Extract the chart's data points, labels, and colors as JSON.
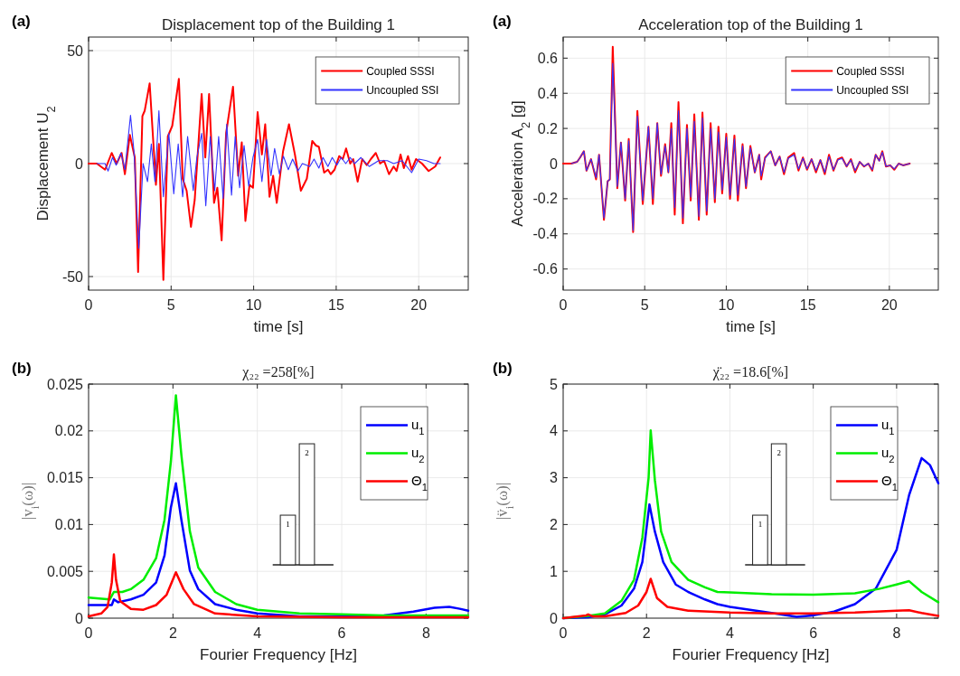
{
  "chart_data": [
    {
      "type": "line",
      "title": "Displacement top of the Building 1",
      "xlabel": "time [s]",
      "ylabel": "Displacement U$_{2}$",
      "annotations": [
        "(a)"
      ],
      "xlim": [
        0,
        23
      ],
      "xticks": [
        0,
        5,
        10,
        15,
        20
      ],
      "ylim": [
        -56,
        56
      ],
      "yticks": [
        -50,
        0,
        50
      ],
      "grid": true,
      "legend": "top right",
      "series": [
        {
          "name": "Coupled SSSI",
          "color": "#ff0000",
          "x": [
            0,
            0.5,
            1.0,
            1.4,
            1.7,
            2.0,
            2.2,
            2.5,
            2.8,
            3.0,
            3.26,
            3.4,
            3.7,
            4.08,
            4.26,
            4.53,
            4.8,
            5.07,
            5.47,
            5.7,
            5.94,
            6.2,
            6.43,
            6.85,
            7.07,
            7.3,
            7.6,
            7.8,
            8.06,
            8.33,
            8.75,
            9.06,
            9.28,
            9.5,
            9.75,
            9.96,
            10.24,
            10.5,
            10.7,
            10.96,
            11.18,
            11.4,
            11.78,
            12.14,
            12.5,
            12.86,
            13.22,
            13.55,
            13.77,
            13.95,
            14.27,
            14.5,
            14.67,
            14.9,
            15.18,
            15.4,
            15.6,
            15.85,
            16.03,
            16.3,
            16.58,
            16.85,
            17.1,
            17.4,
            17.66,
            17.9,
            18.2,
            18.48,
            18.66,
            18.9,
            19.1,
            19.35,
            19.57,
            19.84,
            20.2,
            20.6,
            21.0,
            21.3
          ],
          "values": [
            0,
            0,
            -2.7,
            4.7,
            0,
            4.7,
            -4.7,
            12.7,
            2.7,
            -48,
            21,
            23.4,
            35.5,
            -9.4,
            8.7,
            -51.5,
            12,
            16.7,
            37.5,
            -6.7,
            -12,
            -28,
            -16,
            30.8,
            2.7,
            30.8,
            -17.4,
            -10.7,
            -34,
            13.4,
            34,
            -5.4,
            9.4,
            -25.4,
            -9.4,
            -10.7,
            22.8,
            4,
            17.4,
            -14.7,
            -5.4,
            -17.4,
            5.4,
            17.4,
            4,
            -12,
            -6.7,
            10,
            8,
            7.4,
            -4,
            -2.7,
            -4.7,
            -2.7,
            3.3,
            2,
            6.7,
            0,
            2,
            -8,
            2,
            -0.7,
            2,
            4.7,
            0,
            1.3,
            -4.7,
            -1.3,
            -3.3,
            4,
            -2,
            3.3,
            -2.7,
            2,
            0,
            -3.3,
            -1.3,
            2.7
          ]
        },
        {
          "name": "Uncoupled SSI",
          "color": "#3333ff",
          "x": [
            0.5,
            1.0,
            1.18,
            1.45,
            1.67,
            1.96,
            2.2,
            2.54,
            2.75,
            3.04,
            3.3,
            3.57,
            3.8,
            4.02,
            4.26,
            4.53,
            4.86,
            5.16,
            5.43,
            5.7,
            6.0,
            6.34,
            6.56,
            6.85,
            7.1,
            7.37,
            7.64,
            7.88,
            8.15,
            8.37,
            8.66,
            8.88,
            9.15,
            9.42,
            9.7,
            9.96,
            10.24,
            10.5,
            10.78,
            11.05,
            11.27,
            11.56,
            11.8,
            12.1,
            12.36,
            12.68,
            12.95,
            13.4,
            13.66,
            13.95,
            14.2,
            14.5,
            14.76,
            15.04,
            15.3,
            15.58,
            15.85,
            16.12,
            16.5,
            17.0,
            17.57,
            18.1,
            18.48,
            19.0,
            19.57,
            20.0,
            20.47,
            20.92,
            21.3
          ],
          "values": [
            0,
            0,
            -3.3,
            2.7,
            -0.7,
            4.7,
            -2.7,
            21.4,
            5.4,
            -37.5,
            0,
            -8,
            8.7,
            -8,
            23.4,
            -14.7,
            13.4,
            -13.4,
            8.7,
            -14.7,
            12,
            -12,
            2.7,
            13.4,
            -18.7,
            12,
            -12,
            12,
            -15.4,
            17.4,
            -14,
            12,
            -10.7,
            8,
            -10,
            2.7,
            10.7,
            -8,
            10.7,
            -5.4,
            6.7,
            -4.7,
            3.3,
            -2.7,
            2,
            -3.3,
            0,
            -1.3,
            2,
            -2,
            2.7,
            -1.3,
            2.7,
            -0.7,
            2.7,
            0,
            2.7,
            0,
            2.7,
            -1.3,
            1.3,
            1.3,
            0,
            1.3,
            -4,
            2,
            1.3,
            0,
            0
          ]
        }
      ]
    },
    {
      "type": "line",
      "title": "Acceleration top of the Building 1",
      "xlabel": "time [s]",
      "ylabel": "Acceleration A$_{2}$ [g]",
      "annotations": [
        "(a)"
      ],
      "xlim": [
        0,
        23
      ],
      "xticks": [
        0,
        5,
        10,
        15,
        20
      ],
      "ylim": [
        -0.72,
        0.72
      ],
      "yticks": [
        -0.6,
        -0.4,
        -0.2,
        0,
        0.2,
        0.4,
        0.6
      ],
      "grid": true,
      "legend": "top right",
      "series": [
        {
          "name": "Coupled SSSI",
          "color": "#ff0000",
          "x": [
            0,
            0.5,
            0.86,
            1.04,
            1.27,
            1.43,
            1.71,
            2.02,
            2.2,
            2.5,
            2.73,
            2.86,
            3.04,
            3.32,
            3.54,
            3.8,
            4.02,
            4.29,
            4.55,
            4.88,
            5.23,
            5.5,
            5.77,
            6.0,
            6.25,
            6.45,
            6.63,
            6.84,
            7.07,
            7.34,
            7.59,
            7.82,
            8.04,
            8.32,
            8.54,
            8.8,
            9.04,
            9.3,
            9.52,
            9.75,
            10.0,
            10.23,
            10.5,
            10.71,
            11.0,
            11.21,
            11.48,
            11.75,
            12.02,
            12.14,
            12.38,
            12.73,
            13.0,
            13.27,
            13.54,
            13.8,
            14.16,
            14.43,
            14.7,
            14.95,
            15.23,
            15.5,
            15.77,
            16.04,
            16.3,
            16.57,
            16.84,
            17.1,
            17.38,
            17.64,
            17.9,
            18.18,
            18.45,
            18.71,
            18.95,
            19.16,
            19.38,
            19.57,
            19.79,
            20.05,
            20.3,
            20.57,
            20.84,
            21.25
          ],
          "values": [
            0,
            0,
            0.01,
            0.035,
            0.07,
            -0.04,
            0.025,
            -0.09,
            0.05,
            -0.32,
            -0.1,
            -0.09,
            0.665,
            -0.14,
            0.12,
            -0.21,
            0.14,
            -0.39,
            0.3,
            -0.23,
            0.21,
            -0.23,
            0.23,
            -0.07,
            0.11,
            -0.05,
            0.23,
            -0.29,
            0.35,
            -0.34,
            0.22,
            -0.21,
            0.28,
            -0.32,
            0.29,
            -0.29,
            0.23,
            -0.22,
            0.21,
            -0.17,
            0.17,
            -0.2,
            0.16,
            -0.21,
            0.11,
            -0.14,
            0.1,
            -0.05,
            0.05,
            -0.09,
            0.035,
            0.07,
            -0.01,
            0.04,
            -0.06,
            0.035,
            0.06,
            -0.04,
            0.035,
            -0.035,
            0.025,
            -0.05,
            0.02,
            -0.06,
            0.05,
            -0.04,
            0.025,
            0.035,
            -0.017,
            0.025,
            -0.05,
            0.01,
            -0.017,
            0,
            -0.04,
            0.05,
            0.017,
            0.07,
            -0.017,
            -0.01,
            -0.035,
            0,
            -0.01,
            0
          ]
        },
        {
          "name": "Uncoupled SSI",
          "color": "#3333ff",
          "x": [
            0.5,
            0.86,
            1.04,
            1.27,
            1.43,
            1.71,
            2.02,
            2.2,
            2.5,
            2.73,
            2.86,
            3.04,
            3.32,
            3.54,
            3.8,
            4.02,
            4.29,
            4.55,
            4.88,
            5.23,
            5.5,
            5.77,
            6.0,
            6.25,
            6.45,
            6.63,
            6.84,
            7.07,
            7.34,
            7.59,
            7.82,
            8.04,
            8.32,
            8.54,
            8.8,
            9.04,
            9.3,
            9.52,
            9.75,
            10.0,
            10.23,
            10.5,
            10.71,
            11.0,
            11.21,
            11.48,
            11.75,
            12.02,
            12.14,
            12.38,
            12.73,
            13.0,
            13.27,
            13.54,
            13.8,
            14.16,
            14.43,
            14.7,
            14.95,
            15.23,
            15.5,
            15.77,
            16.04,
            16.3,
            16.57,
            16.84,
            17.1,
            17.38,
            17.64,
            17.9,
            18.18,
            18.45,
            18.71,
            18.95,
            19.16,
            19.38,
            19.57,
            19.79,
            20.05,
            20.3,
            20.57,
            20.84,
            21.25
          ],
          "values": [
            0,
            0.01,
            0.035,
            0.07,
            -0.04,
            0.025,
            -0.08,
            0.05,
            -0.31,
            -0.1,
            -0.09,
            0.57,
            -0.13,
            0.12,
            -0.2,
            0.13,
            -0.38,
            0.27,
            -0.21,
            0.21,
            -0.2,
            0.23,
            -0.06,
            0.1,
            -0.05,
            0.2,
            -0.25,
            0.3,
            -0.31,
            0.2,
            -0.19,
            0.24,
            -0.3,
            0.26,
            -0.27,
            0.2,
            -0.2,
            0.18,
            -0.15,
            0.15,
            -0.18,
            0.14,
            -0.18,
            0.1,
            -0.13,
            0.09,
            -0.05,
            0.05,
            -0.07,
            0.03,
            0.07,
            -0.01,
            0.04,
            -0.05,
            0.03,
            0.05,
            -0.03,
            0.03,
            -0.03,
            0.025,
            -0.04,
            0.02,
            -0.05,
            0.04,
            -0.035,
            0.02,
            0.03,
            -0.015,
            0.02,
            -0.04,
            0.01,
            -0.015,
            0,
            -0.035,
            0.05,
            0.015,
            0.065,
            -0.015,
            -0.01,
            -0.03,
            0,
            -0.01,
            0
          ]
        }
      ]
    },
    {
      "type": "line",
      "title": "χ₂₂ =258[%]",
      "xlabel": "Fourier Frequency [Hz]",
      "ylabel": "|v$_{i}$(ω)|",
      "annotations": [
        "(b)",
        "1",
        "2"
      ],
      "xlim": [
        0,
        9
      ],
      "xticks": [
        0,
        2,
        4,
        6,
        8
      ],
      "ylim": [
        0,
        0.025
      ],
      "yticks": [
        0,
        0.005,
        0.01,
        0.015,
        0.02,
        0.025
      ],
      "grid": true,
      "legend": "top right",
      "series": [
        {
          "name": "u$_{1}$",
          "color": "#0000ff",
          "x": [
            0,
            0.55,
            0.6,
            0.7,
            1.0,
            1.3,
            1.6,
            1.8,
            1.95,
            2.07,
            2.2,
            2.4,
            2.6,
            3.0,
            3.5,
            4,
            5,
            6,
            7,
            7.7,
            8.2,
            8.55,
            8.8,
            9
          ],
          "values": [
            0.0014,
            0.0014,
            0.002,
            0.0017,
            0.002,
            0.0025,
            0.0038,
            0.0067,
            0.0118,
            0.0144,
            0.0105,
            0.0051,
            0.0031,
            0.0015,
            0.0009,
            0.0005,
            0.0002,
            0.0002,
            0.0003,
            0.0007,
            0.0011,
            0.0012,
            0.001,
            0.0008
          ]
        },
        {
          "name": "u$_{2}$",
          "color": "#00ee00",
          "x": [
            0,
            0.5,
            0.6,
            0.8,
            1.0,
            1.3,
            1.6,
            1.8,
            1.95,
            2.07,
            2.2,
            2.4,
            2.6,
            3.0,
            3.5,
            4,
            5,
            6,
            7,
            8,
            9
          ],
          "values": [
            0.0022,
            0.002,
            0.0028,
            0.0028,
            0.0031,
            0.0041,
            0.0064,
            0.0105,
            0.0167,
            0.0238,
            0.0174,
            0.0093,
            0.0054,
            0.0028,
            0.0015,
            0.0009,
            0.0005,
            0.0004,
            0.0003,
            0.0003,
            0.0003
          ]
        },
        {
          "name": "Θ$_{1}$",
          "color": "#ff0000",
          "x": [
            0,
            0.3,
            0.45,
            0.55,
            0.6,
            0.65,
            0.75,
            1.0,
            1.3,
            1.6,
            1.85,
            2.07,
            2.25,
            2.5,
            3,
            4,
            6,
            9
          ],
          "values": [
            0.0002,
            0.0005,
            0.0012,
            0.0038,
            0.0068,
            0.0041,
            0.0018,
            0.001,
            0.0009,
            0.0014,
            0.0025,
            0.0049,
            0.0031,
            0.0015,
            0.0005,
            0.0002,
            0.0001,
            0.0001
          ]
        }
      ]
    },
    {
      "type": "line",
      "title": "χ̈₂₂ =18.6[%]",
      "xlabel": "Fourier Frequency [Hz]",
      "ylabel": "|v̈$_{i}$(ω)|",
      "annotations": [
        "(b)",
        "1",
        "2"
      ],
      "xlim": [
        0,
        9
      ],
      "xticks": [
        0,
        2,
        4,
        6,
        8
      ],
      "ylim": [
        0,
        5
      ],
      "yticks": [
        0,
        1,
        2,
        3,
        4,
        5
      ],
      "grid": true,
      "legend": "top right",
      "series": [
        {
          "name": "u$_{1}$",
          "color": "#0000ff",
          "x": [
            0,
            0.6,
            1.0,
            1.4,
            1.7,
            1.9,
            2.07,
            2.2,
            2.4,
            2.7,
            3.0,
            3.4,
            3.7,
            4.0,
            5.0,
            5.6,
            6.0,
            6.5,
            7.0,
            7.5,
            8.0,
            8.3,
            8.6,
            8.8,
            9
          ],
          "values": [
            0,
            0.02,
            0.08,
            0.27,
            0.63,
            1.2,
            2.43,
            1.85,
            1.2,
            0.72,
            0.56,
            0.4,
            0.3,
            0.24,
            0.11,
            0.03,
            0.06,
            0.14,
            0.3,
            0.63,
            1.46,
            2.63,
            3.42,
            3.27,
            2.88
          ]
        },
        {
          "name": "u$_{2}$",
          "color": "#00ee00",
          "x": [
            0,
            0.6,
            1.0,
            1.4,
            1.7,
            1.9,
            2.05,
            2.1,
            2.2,
            2.35,
            2.6,
            3.0,
            3.4,
            3.7,
            4,
            5,
            6,
            7,
            7.6,
            8.0,
            8.3,
            8.6,
            9
          ],
          "values": [
            0,
            0.05,
            0.1,
            0.37,
            0.82,
            1.72,
            3.0,
            4.01,
            2.95,
            1.85,
            1.2,
            0.82,
            0.66,
            0.56,
            0.55,
            0.51,
            0.5,
            0.53,
            0.63,
            0.72,
            0.79,
            0.56,
            0.34
          ]
        },
        {
          "name": "Θ$_{1}$",
          "color": "#ff0000",
          "x": [
            0,
            0.55,
            0.6,
            0.7,
            1.0,
            1.5,
            1.8,
            2.0,
            2.1,
            2.25,
            2.5,
            3.0,
            4,
            5,
            6,
            7,
            8,
            8.3,
            8.6,
            9
          ],
          "values": [
            0,
            0.06,
            0.08,
            0.04,
            0.04,
            0.11,
            0.27,
            0.56,
            0.84,
            0.43,
            0.24,
            0.16,
            0.12,
            0.1,
            0.1,
            0.12,
            0.16,
            0.17,
            0.11,
            0.05
          ]
        }
      ]
    }
  ]
}
